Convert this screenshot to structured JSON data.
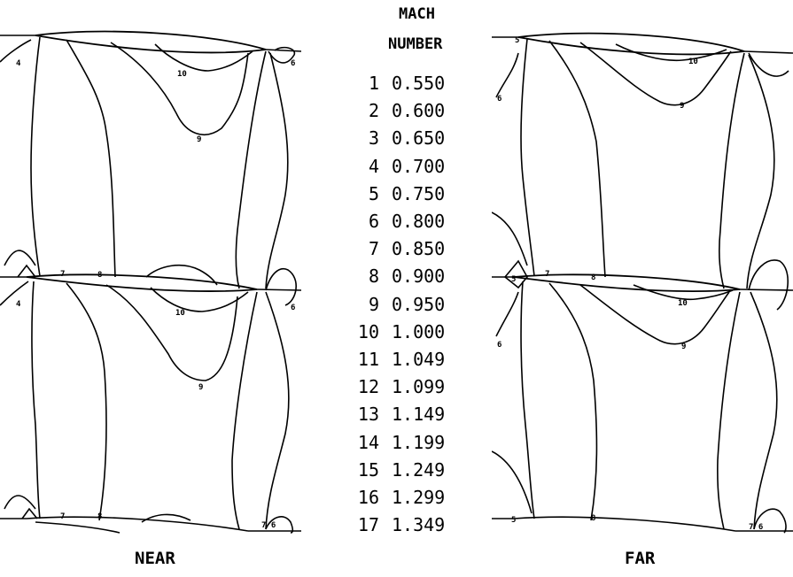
{
  "legend": {
    "title_line1": "MACH",
    "title_line2": "NUMBER",
    "entries": [
      {
        "index": "1",
        "value": "0.550"
      },
      {
        "index": "2",
        "value": "0.600"
      },
      {
        "index": "3",
        "value": "0.650"
      },
      {
        "index": "4",
        "value": "0.700"
      },
      {
        "index": "5",
        "value": "0.750"
      },
      {
        "index": "6",
        "value": "0.800"
      },
      {
        "index": "7",
        "value": "0.850"
      },
      {
        "index": "8",
        "value": "0.900"
      },
      {
        "index": "9",
        "value": "0.950"
      },
      {
        "index": "10",
        "value": "1.000"
      },
      {
        "index": "11",
        "value": "1.049"
      },
      {
        "index": "12",
        "value": "1.099"
      },
      {
        "index": "13",
        "value": "1.149"
      },
      {
        "index": "14",
        "value": "1.199"
      },
      {
        "index": "15",
        "value": "1.249"
      },
      {
        "index": "16",
        "value": "1.299"
      },
      {
        "index": "17",
        "value": "1.349"
      }
    ]
  },
  "panels": {
    "near": {
      "label": "NEAR"
    },
    "far": {
      "label": "FAR"
    }
  }
}
